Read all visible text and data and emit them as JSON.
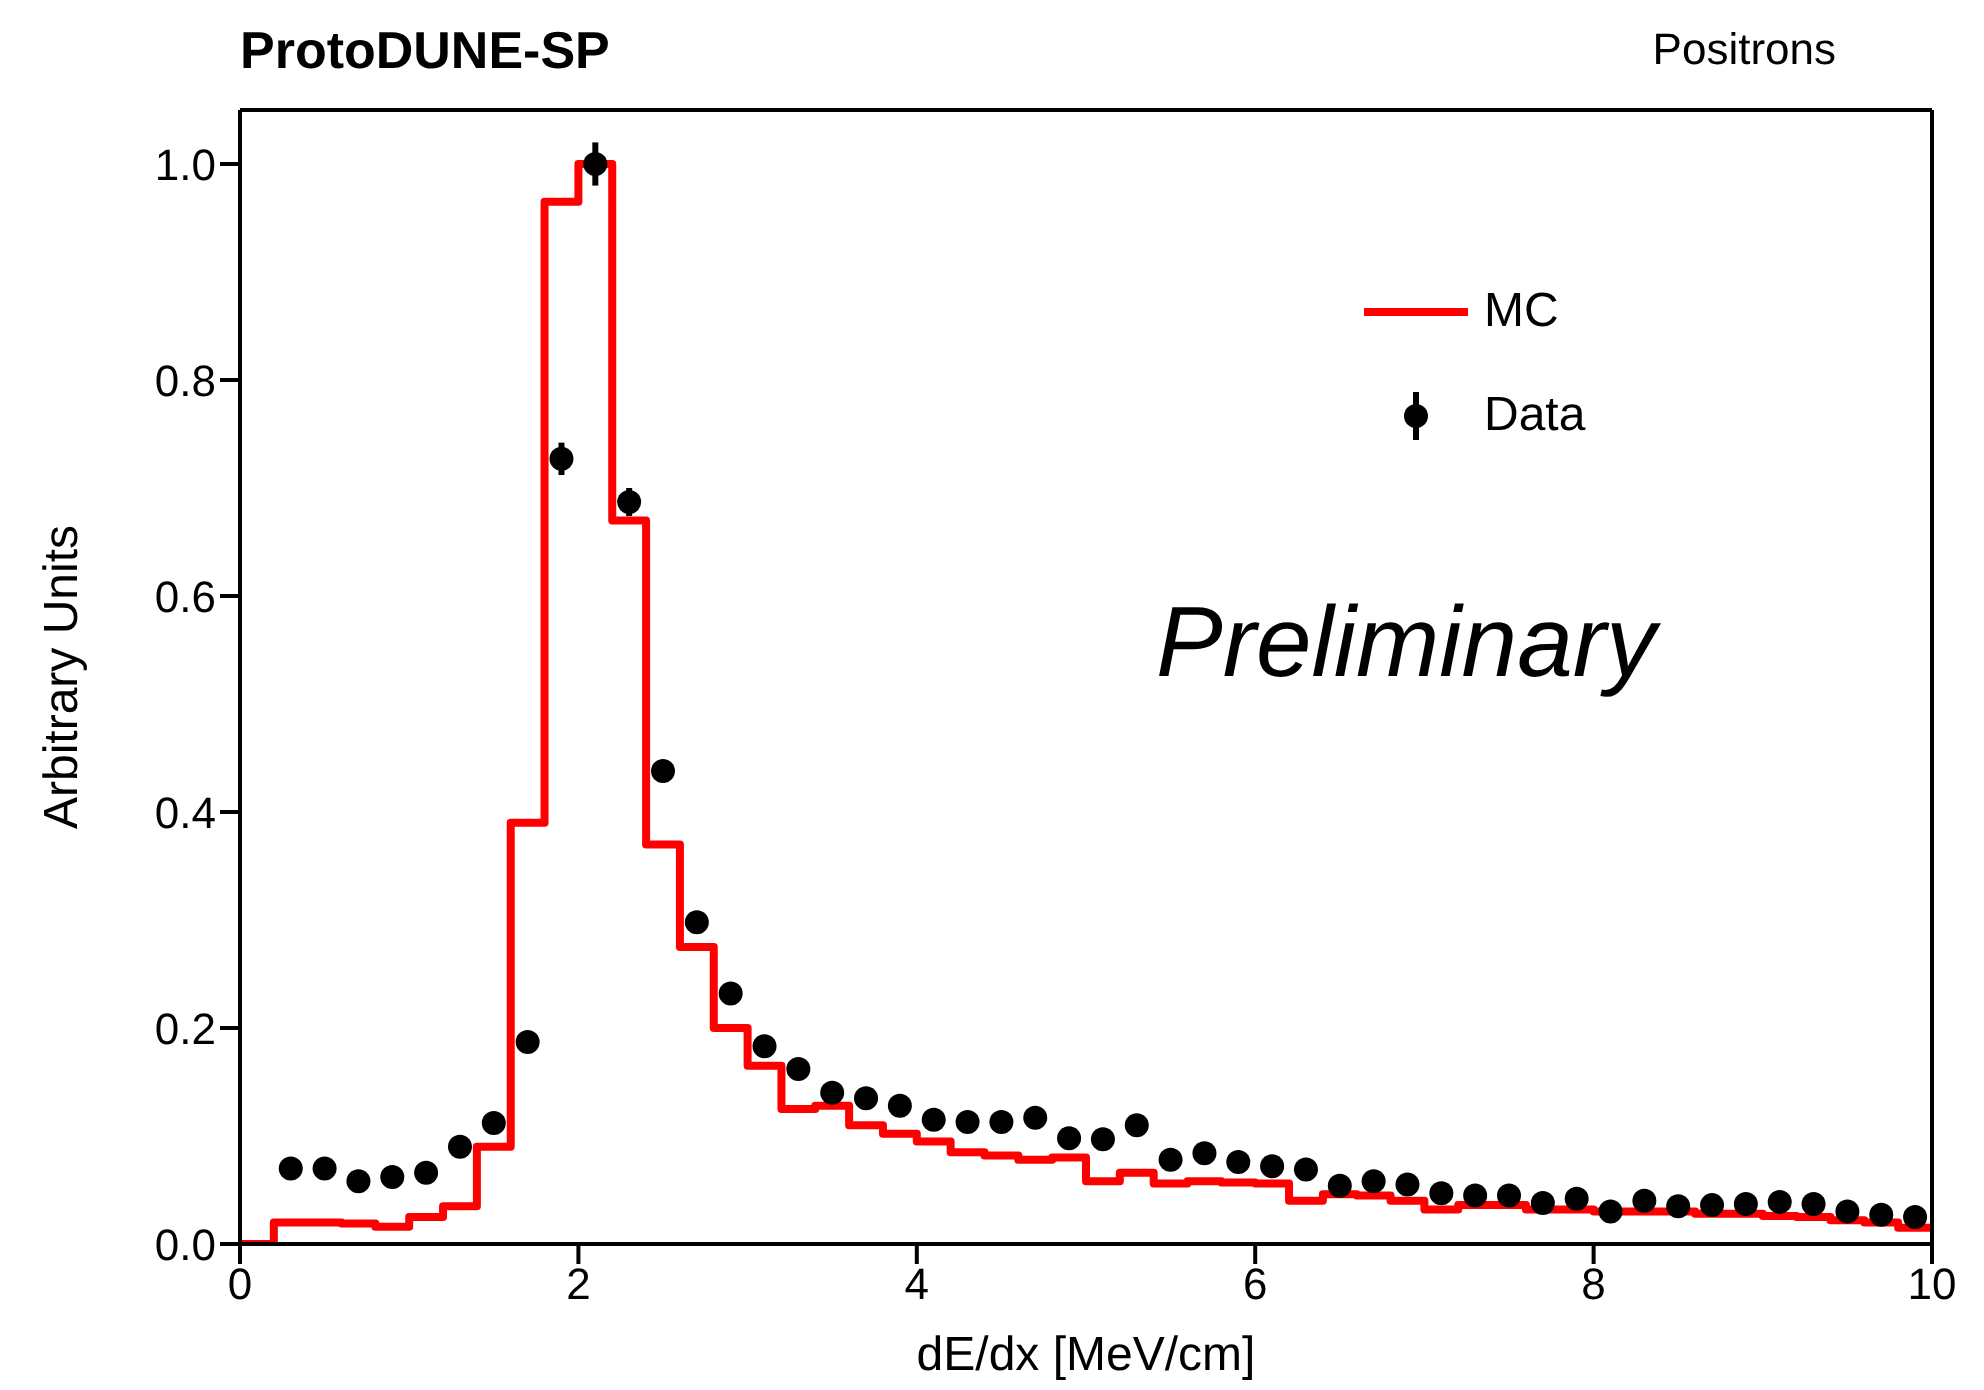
{
  "chart_data": {
    "type": "histogram",
    "title": "ProtoDUNE-SP",
    "subtitle": "Positrons",
    "xlabel": "dE/dx [MeV/cm]",
    "ylabel": "Arbitrary Units",
    "annotations": [
      "Preliminary"
    ],
    "bins": [
      0,
      0.2,
      0.4,
      0.6,
      0.8,
      1,
      1.2,
      1.4,
      1.6,
      1.8,
      2,
      2.2,
      2.4,
      2.6,
      2.8,
      3,
      3.2,
      3.4,
      3.6,
      3.8,
      4,
      4.2,
      4.4,
      4.6,
      4.8,
      5,
      5.2,
      5.4,
      5.6,
      5.8,
      6,
      6.2,
      6.4,
      6.6,
      6.8,
      7,
      7.2,
      7.4,
      7.6,
      7.8,
      8,
      8.2,
      8.4,
      8.6,
      8.8,
      9,
      9.2,
      9.4,
      9.6,
      9.8,
      10
    ],
    "series": [
      {
        "name": "MC",
        "color": "#ff0000",
        "values": [
          0,
          0.02,
          0.02,
          0.019,
          0.016,
          0.025,
          0.035,
          0.09,
          0.39,
          0.965,
          1.0,
          0.67,
          0.37,
          0.275,
          0.2,
          0.165,
          0.125,
          0.128,
          0.11,
          0.102,
          0.095,
          0.085,
          0.082,
          0.078,
          0.08,
          0.058,
          0.066,
          0.056,
          0.058,
          0.057,
          0.056,
          0.04,
          0.046,
          0.045,
          0.04,
          0.032,
          0.036,
          0.036,
          0.032,
          0.032,
          0.03,
          0.03,
          0.03,
          0.028,
          0.028,
          0.026,
          0.025,
          0.022,
          0.02,
          0.015
        ]
      },
      {
        "name": "Data",
        "type": "scatter",
        "color": "#000000",
        "marker": "circle",
        "x": [
          0.3,
          0.5,
          0.7,
          0.9,
          1.1,
          1.3,
          1.5,
          1.7,
          1.9,
          2.1,
          2.3,
          2.5,
          2.7,
          2.9,
          3.1,
          3.3,
          3.5,
          3.7,
          3.9,
          4.1,
          4.3,
          4.5,
          4.7,
          4.9,
          5.1,
          5.3,
          5.5,
          5.7,
          5.9,
          6.1,
          6.3,
          6.5,
          6.7,
          6.9,
          7.1,
          7.3,
          7.5,
          7.7,
          7.9,
          8.1,
          8.3,
          8.5,
          8.7,
          8.9,
          9.1,
          9.3,
          9.5,
          9.7,
          9.9
        ],
        "values": [
          0.07,
          0.07,
          0.058,
          0.062,
          0.066,
          0.09,
          0.112,
          0.187,
          0.727,
          1.0,
          0.687,
          0.438,
          0.298,
          0.232,
          0.183,
          0.162,
          0.14,
          0.135,
          0.128,
          0.115,
          0.113,
          0.113,
          0.117,
          0.098,
          0.097,
          0.11,
          0.078,
          0.084,
          0.076,
          0.072,
          0.069,
          0.054,
          0.058,
          0.055,
          0.047,
          0.045,
          0.045,
          0.038,
          0.042,
          0.03,
          0.04,
          0.035,
          0.036,
          0.037,
          0.039,
          0.037,
          0.03,
          0.027,
          0.025
        ],
        "errors": [
          null,
          null,
          null,
          null,
          null,
          null,
          null,
          null,
          0.015,
          0.02,
          0.013,
          0.01,
          0.008,
          null,
          null,
          null,
          null,
          null,
          null,
          null,
          null,
          null,
          null,
          null,
          null,
          null,
          null,
          null,
          null,
          null,
          null,
          null,
          null,
          null,
          null,
          null,
          null,
          null,
          null,
          null,
          null,
          null,
          null,
          null,
          null,
          null,
          null,
          null,
          null
        ]
      }
    ],
    "xlim": [
      0,
      10
    ],
    "xticks": [
      0,
      2,
      4,
      6,
      8,
      10
    ],
    "ylim": [
      0,
      1.05
    ],
    "yticks": [
      {
        "value": 0,
        "label": "0.0"
      },
      0.2,
      0.4,
      0.6,
      0.8,
      {
        "value": 1,
        "label": "1.0"
      }
    ],
    "grid": false,
    "legend": "top right"
  }
}
